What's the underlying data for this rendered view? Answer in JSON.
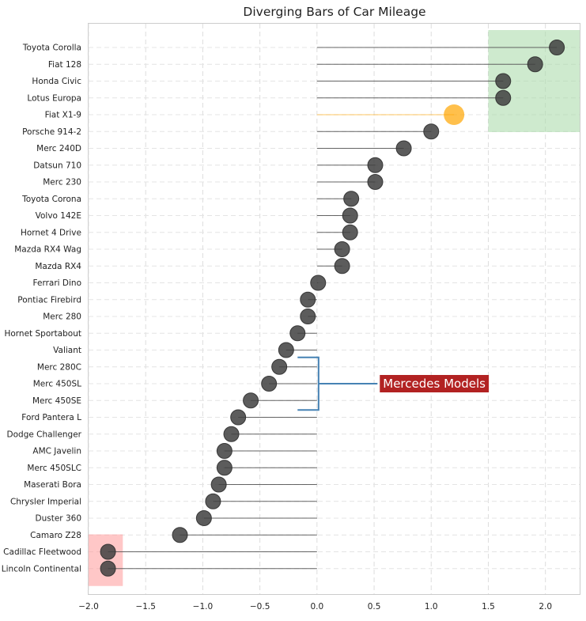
{
  "chart_data": {
    "type": "lollipop",
    "title": "Diverging Bars of Car Mileage",
    "xlabel": "",
    "ylabel": "",
    "xlim": [
      -2.0,
      2.3
    ],
    "xticks": [
      {
        "value": -2.0,
        "label": "−2.0"
      },
      {
        "value": -1.5,
        "label": "−1.5"
      },
      {
        "value": -1.0,
        "label": "−1.0"
      },
      {
        "value": -0.5,
        "label": "−0.5"
      },
      {
        "value": 0.0,
        "label": "0.0"
      },
      {
        "value": 0.5,
        "label": "0.5"
      },
      {
        "value": 1.0,
        "label": "1.0"
      },
      {
        "value": 1.5,
        "label": "1.5"
      },
      {
        "value": 2.0,
        "label": "2.0"
      }
    ],
    "grid": true,
    "categories": [
      "Toyota Corolla",
      "Fiat 128",
      "Honda Civic",
      "Lotus Europa",
      "Fiat X1-9",
      "Porsche 914-2",
      "Merc 240D",
      "Datsun 710",
      "Merc 230",
      "Toyota Corona",
      "Volvo 142E",
      "Hornet 4 Drive",
      "Mazda RX4 Wag",
      "Mazda RX4",
      "Ferrari Dino",
      "Pontiac Firebird",
      "Merc 280",
      "Hornet Sportabout",
      "Valiant",
      "Merc 280C",
      "Merc 450SL",
      "Merc 450SE",
      "Ford Pantera L",
      "Dodge Challenger",
      "AMC Javelin",
      "Merc 450SLC",
      "Maserati Bora",
      "Chrysler Imperial",
      "Duster 360",
      "Camaro Z28",
      "Cadillac Fleetwood",
      "Lincoln Continental"
    ],
    "values": [
      2.1,
      1.91,
      1.63,
      1.63,
      1.2,
      1.0,
      0.76,
      0.51,
      0.51,
      0.3,
      0.29,
      0.29,
      0.22,
      0.22,
      0.01,
      -0.08,
      -0.08,
      -0.17,
      -0.27,
      -0.33,
      -0.42,
      -0.58,
      -0.69,
      -0.75,
      -0.81,
      -0.81,
      -0.86,
      -0.91,
      -0.99,
      -1.2,
      -1.83,
      -1.83
    ],
    "highlight": {
      "category": "Fiat X1-9",
      "color": "#ffa500"
    },
    "colors": {
      "point": "#404040",
      "line": "#555555",
      "highlight": "#ffa500",
      "top_region": "#a6d8a6",
      "bottom_region": "#ff9999",
      "bracket": "#4682b4",
      "annotation_bg": "#b22222",
      "annotation_text": "#ffffff"
    },
    "regions": [
      {
        "name": "top-region",
        "x_range": [
          1.5,
          2.3
        ],
        "from_category": "Toyota Corolla",
        "to_category": "Fiat X1-9"
      },
      {
        "name": "bottom-region",
        "x_range": [
          -2.0,
          -1.7
        ],
        "from_category": "Cadillac Fleetwood",
        "to_category": "Lincoln Continental"
      }
    ],
    "annotation": {
      "text": "Mercedes Models",
      "bracket_x": 0.0,
      "bracket_left_x": -0.17,
      "from_category": "Merc 280C",
      "to_category": "Merc 450SE",
      "text_x": 0.55
    }
  }
}
